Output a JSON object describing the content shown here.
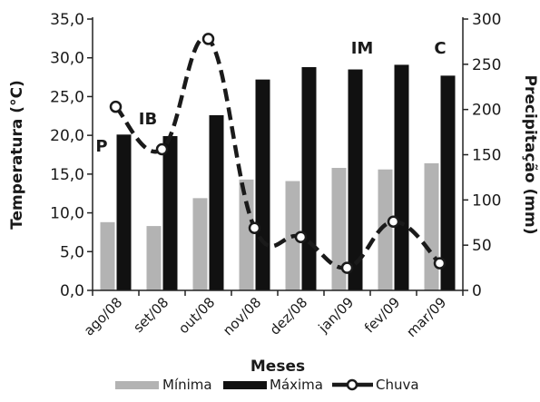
{
  "chart_data": {
    "type": "bar",
    "title": "",
    "xlabel": "Meses",
    "ylabel": "Temperatura (°C)",
    "y2label": "Precipitação (mm)",
    "ylim": [
      0,
      35
    ],
    "y2lim": [
      0,
      300
    ],
    "yticks": [
      "0,0",
      "5,0",
      "10,0",
      "15,0",
      "20,0",
      "25,0",
      "30,0",
      "35,0"
    ],
    "y2ticks": [
      "0",
      "50",
      "100",
      "150",
      "200",
      "250",
      "300"
    ],
    "categories": [
      "ago/08",
      "set/08",
      "out/08",
      "nov/08",
      "dez/08",
      "jan/09",
      "fev/09",
      "mar/09"
    ],
    "series": [
      {
        "name": "Mínima",
        "type": "bar",
        "axis": "left",
        "color": "#b3b3b3",
        "values": [
          8.8,
          8.3,
          11.9,
          14.3,
          14.1,
          15.8,
          15.6,
          16.4
        ]
      },
      {
        "name": "Máxima",
        "type": "bar",
        "axis": "left",
        "color": "#111111",
        "values": [
          20.1,
          19.9,
          22.6,
          27.2,
          28.8,
          28.5,
          29.1,
          27.7
        ]
      },
      {
        "name": "Chuva",
        "type": "line",
        "axis": "right",
        "color": "#1a1a1a",
        "style": "dashed",
        "values": [
          203,
          156,
          278,
          69,
          59,
          25,
          76,
          30
        ]
      }
    ],
    "annotations": [
      {
        "text": "P",
        "category": "ago/08"
      },
      {
        "text": "IB",
        "category": "set/08"
      },
      {
        "text": "IM",
        "category": "jan/09"
      },
      {
        "text": "C",
        "category": "mar/09"
      }
    ],
    "grid": false,
    "legend": "bottom"
  }
}
